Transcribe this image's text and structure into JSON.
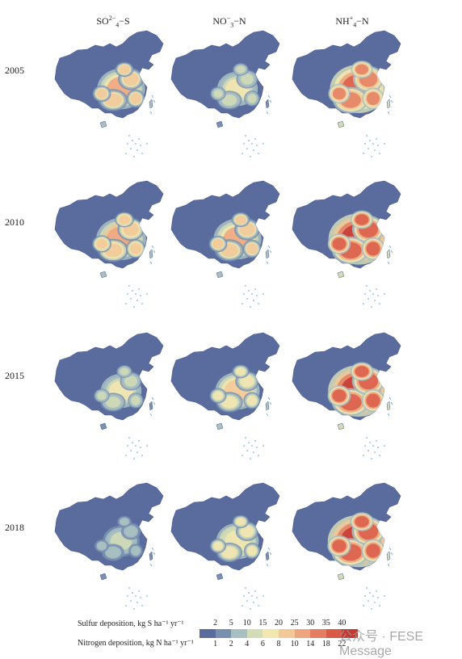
{
  "columns": [
    {
      "name": "SO4-S",
      "label_main": "SO",
      "label_sub": "4",
      "label_sup": "2−",
      "label_tail": "−S"
    },
    {
      "name": "NO3-N",
      "label_main": "NO",
      "label_sub": "3",
      "label_sup": "−",
      "label_tail": "−N"
    },
    {
      "name": "NH4-N",
      "label_main": "NH",
      "label_sub": "4",
      "label_sup": "+",
      "label_tail": "−N"
    }
  ],
  "rows": [
    {
      "year": "2005",
      "levels": [
        0.55,
        0.35,
        0.8
      ]
    },
    {
      "year": "2010",
      "levels": [
        0.6,
        0.55,
        0.88
      ]
    },
    {
      "year": "2015",
      "levels": [
        0.35,
        0.45,
        0.9
      ]
    },
    {
      "year": "2018",
      "levels": [
        0.25,
        0.4,
        0.92
      ]
    }
  ],
  "legend": {
    "sulfur_label": "Sulfur deposition, kg S ha⁻¹ yr⁻¹",
    "nitrogen_label": "Nitrogen deposition, kg N ha⁻¹ yr⁻¹",
    "sulfur_ticks": [
      "2",
      "5",
      "10",
      "15",
      "20",
      "25",
      "30",
      "35",
      "40"
    ],
    "nitrogen_ticks": [
      "1",
      "2",
      "4",
      "6",
      "8",
      "10",
      "14",
      "18",
      "22"
    ],
    "colors": [
      "#5a6c9e",
      "#7890b0",
      "#a9c0c2",
      "#d3dcb6",
      "#f3e7b0",
      "#f2c898",
      "#eea47e",
      "#e47e62",
      "#d95a48",
      "#c43a33"
    ]
  },
  "watermark": "公众号 · FESE Message"
}
